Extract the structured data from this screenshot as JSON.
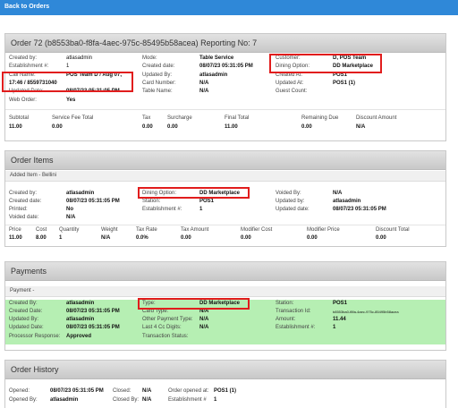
{
  "nav": {
    "back_label": "Back to Orders"
  },
  "order": {
    "title": "Order 72 (b8553ba0-f8fa-4aec-975c-85495b58acea) Reporting No: 7",
    "rows": [
      [
        {
          "label": "Created by:",
          "value": "atlasadmin"
        },
        {
          "label": "Mode:",
          "value": "Table Service"
        },
        {
          "label": "Customer:",
          "value": "D, POS Team"
        }
      ],
      [
        {
          "label": "Establishment #:",
          "value": "1"
        },
        {
          "label": "Created date:",
          "value": "08/07/23 05:31:05 PM"
        },
        {
          "label": "Dining Option:",
          "value": "DD Marketplace"
        }
      ],
      [
        {
          "label": "Call Name:",
          "value": "POS Team D / Aug 07,"
        },
        {
          "label": "Updated By:",
          "value": "atlasadmin"
        },
        {
          "label": "Created At:",
          "value": "POS1"
        }
      ],
      [
        {
          "label": "",
          "value": "17:46 / 8559731040"
        },
        {
          "label": "Card Number:",
          "value": "N/A"
        },
        {
          "label": "Updated At:",
          "value": "POS1 (1)"
        }
      ],
      [
        {
          "label": "Updated Date:",
          "value": "08/07/23 05:31:05 PM"
        },
        {
          "label": "Table Name:",
          "value": "N/A"
        },
        {
          "label": "Guest Count:",
          "value": ""
        }
      ],
      [
        {
          "label": "Web Order:",
          "value": "Yes"
        },
        {
          "label": "",
          "value": ""
        },
        {
          "label": "",
          "value": ""
        }
      ]
    ],
    "totals_headers": [
      "Subtotal",
      "Service Fee Total",
      "Tax",
      "Surcharge",
      "Final Total",
      "Remaining Due",
      "Discount Amount"
    ],
    "totals_values": [
      "11.00",
      "0.00",
      "0.00",
      "0.00",
      "11.00",
      "0.00",
      "N/A"
    ]
  },
  "items": {
    "title": "Order Items",
    "item_header": "Added Item - Bellini",
    "rows": [
      [
        {
          "label": "Created by:",
          "value": "atlasadmin"
        },
        {
          "label": "Dining Option:",
          "value": "DD Marketplace"
        },
        {
          "label": "Voided By:",
          "value": "N/A"
        }
      ],
      [
        {
          "label": "Created date:",
          "value": "08/07/23 05:31:05 PM"
        },
        {
          "label": "Station:",
          "value": "POS1"
        },
        {
          "label": "Updated by:",
          "value": "atlasadmin"
        }
      ],
      [
        {
          "label": "Printed:",
          "value": "No"
        },
        {
          "label": "Establishment #:",
          "value": "1"
        },
        {
          "label": "Updated date:",
          "value": "08/07/23 05:31:05 PM"
        }
      ],
      [
        {
          "label": "Voided date:",
          "value": "N/A"
        },
        {
          "label": "",
          "value": ""
        },
        {
          "label": "",
          "value": ""
        }
      ]
    ],
    "price_headers": [
      "Price",
      "Cost",
      "Quantity",
      "Weight",
      "Tax Rate",
      "Tax Amount",
      "Modifier Cost",
      "Modifier Price",
      "Discount Total"
    ],
    "price_values": [
      "11.00",
      "8.00",
      "1",
      "N/A",
      "0.0%",
      "0.00",
      "0.00",
      "0.00",
      "0.00"
    ]
  },
  "payments": {
    "title": "Payments",
    "sub_header": "Payment -",
    "rows": [
      [
        {
          "label": "Created By:",
          "value": "atlasadmin"
        },
        {
          "label": "Type:",
          "value": "DD Marketplace"
        },
        {
          "label": "Station:",
          "value": "POS1"
        }
      ],
      [
        {
          "label": "Created Date:",
          "value": "08/07/23 05:31:05 PM"
        },
        {
          "label": "Card Type:",
          "value": "N/A"
        },
        {
          "label": "Transaction Id:",
          "value": "b8553ba0-f8fa-4aec-975c-85495b58acea"
        }
      ],
      [
        {
          "label": "Updated By:",
          "value": "atlasadmin"
        },
        {
          "label": "Other Payment Type:",
          "value": "N/A"
        },
        {
          "label": "Amount:",
          "value": "11.44"
        }
      ],
      [
        {
          "label": "Updated Date:",
          "value": "08/07/23 05:31:05 PM"
        },
        {
          "label": "Last 4 Cc Digits:",
          "value": "N/A"
        },
        {
          "label": "Establishment #:",
          "value": "1"
        }
      ],
      [
        {
          "label": "Processor Response:",
          "value": "Approved"
        },
        {
          "label": "Transaction Status:",
          "value": ""
        },
        {
          "label": "",
          "value": ""
        }
      ]
    ]
  },
  "history": {
    "title": "Order History",
    "rows": [
      [
        {
          "label": "Opened:",
          "value": "08/07/23 05:31:05 PM"
        },
        {
          "label": "Closed:",
          "value": "N/A"
        },
        {
          "label": "Order opened at:",
          "value": "POS1 (1)"
        }
      ],
      [
        {
          "label": "Opened By:",
          "value": "atlasadmin"
        },
        {
          "label": "Closed By:",
          "value": "N/A"
        },
        {
          "label": "Establishment #",
          "value": "1"
        }
      ]
    ]
  },
  "colors": {
    "topbar": "#2f88d8",
    "highlight": "#e11d1d",
    "payment_row": "#b6efb3"
  }
}
